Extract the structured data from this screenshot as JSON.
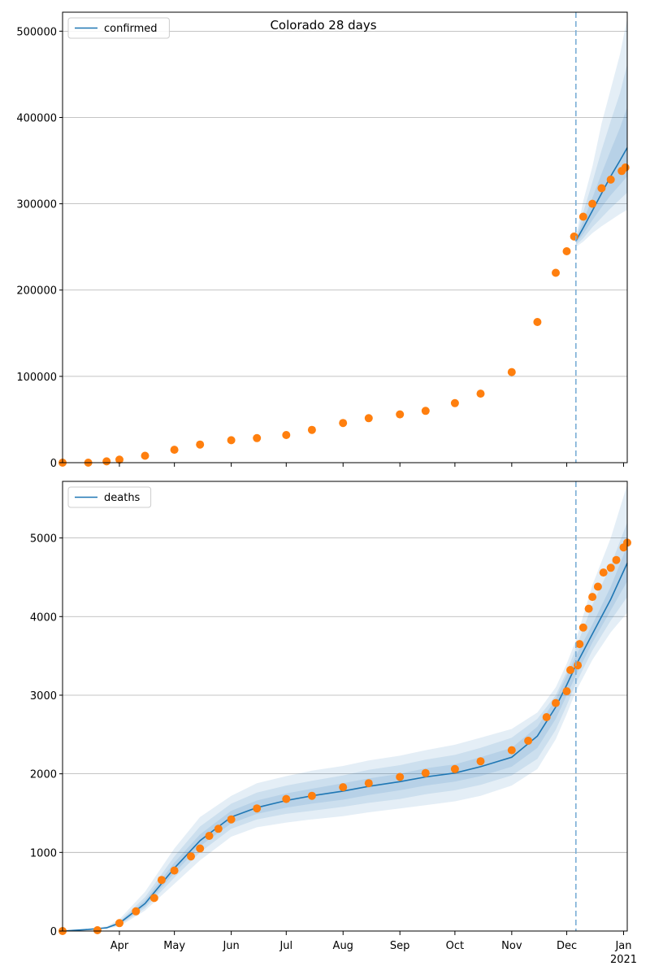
{
  "chart_data": [
    {
      "type": "line",
      "title": "Colorado 28 days",
      "xlabel": "",
      "ylabel": "",
      "ylim": [
        0,
        522000
      ],
      "yticks": [
        0,
        100000,
        200000,
        300000,
        400000,
        500000
      ],
      "ytick_labels": [
        "0",
        "100000",
        "200000",
        "300000",
        "400000",
        "500000"
      ],
      "grid": "y",
      "legend_position": "top-left",
      "series": [
        {
          "name": "confirmed",
          "kind": "model",
          "color": "#1f77b4",
          "points": [
            [
              "2020-12-06",
              257000
            ],
            [
              "2020-12-10",
              272000
            ],
            [
              "2020-12-15",
              292000
            ],
            [
              "2020-12-20",
              312000
            ],
            [
              "2020-12-25",
              332000
            ],
            [
              "2020-12-30",
              350000
            ],
            [
              "2021-01-03",
              365000
            ]
          ],
          "bands": [
            {
              "lower": [
                250000,
                256000,
                266000,
                274000,
                281000,
                288000,
                293000
              ],
              "upper": [
                262000,
                303000,
                343000,
                393000,
                433000,
                473000,
                515000
              ]
            },
            {
              "lower": [
                252000,
                260000,
                273000,
                284000,
                295000,
                305000,
                313000
              ],
              "upper": [
                260000,
                290000,
                325000,
                362000,
                396000,
                428000,
                462000
              ]
            },
            {
              "lower": [
                254000,
                265000,
                281000,
                296000,
                310000,
                322000,
                332000
              ],
              "upper": [
                259000,
                280000,
                307000,
                335000,
                362000,
                388000,
                412000
              ]
            }
          ]
        },
        {
          "name": "",
          "kind": "observed",
          "color": "#ff7f0e",
          "points": [
            [
              "2020-03-01",
              0
            ],
            [
              "2020-03-15",
              0
            ],
            [
              "2020-03-25",
              1500
            ],
            [
              "2020-04-01",
              3500
            ],
            [
              "2020-04-15",
              8000
            ],
            [
              "2020-05-01",
              15000
            ],
            [
              "2020-05-15",
              21000
            ],
            [
              "2020-06-01",
              26000
            ],
            [
              "2020-06-15",
              28500
            ],
            [
              "2020-07-01",
              32000
            ],
            [
              "2020-07-15",
              38000
            ],
            [
              "2020-08-01",
              46000
            ],
            [
              "2020-08-15",
              51500
            ],
            [
              "2020-09-01",
              56000
            ],
            [
              "2020-09-15",
              60000
            ],
            [
              "2020-10-01",
              69000
            ],
            [
              "2020-10-15",
              80000
            ],
            [
              "2020-11-01",
              105000
            ],
            [
              "2020-11-15",
              163000
            ],
            [
              "2020-11-25",
              220000
            ],
            [
              "2020-12-01",
              245000
            ],
            [
              "2020-12-05",
              262000
            ],
            [
              "2020-12-10",
              285000
            ],
            [
              "2020-12-15",
              300000
            ],
            [
              "2020-12-20",
              318000
            ],
            [
              "2020-12-25",
              328000
            ],
            [
              "2020-12-31",
              338000
            ],
            [
              "2021-01-02",
              342000
            ]
          ]
        }
      ],
      "annotations": [
        {
          "type": "vline",
          "x": "2020-12-06",
          "style": "dashed",
          "color": "#7aaed6"
        }
      ]
    },
    {
      "type": "line",
      "title": "",
      "xlabel": "",
      "ylabel": "",
      "ylim": [
        0,
        5720
      ],
      "yticks": [
        0,
        1000,
        2000,
        3000,
        4000,
        5000
      ],
      "ytick_labels": [
        "0",
        "1000",
        "2000",
        "3000",
        "4000",
        "5000"
      ],
      "grid": "y",
      "legend_position": "top-left",
      "xlim": [
        "2020-03-01",
        "2021-01-03"
      ],
      "xticks": [
        "2020-04-01",
        "2020-05-01",
        "2020-06-01",
        "2020-07-01",
        "2020-08-01",
        "2020-09-01",
        "2020-10-01",
        "2020-11-01",
        "2020-12-01",
        "2021-01-01"
      ],
      "xtick_labels": [
        "Apr",
        "May",
        "Jun",
        "Jul",
        "Aug",
        "Sep",
        "Oct",
        "Nov",
        "Dec",
        "Jan"
      ],
      "xtick_sublabel": "2021",
      "series": [
        {
          "name": "deaths",
          "kind": "model",
          "color": "#1f77b4",
          "points": [
            [
              "2020-03-01",
              0
            ],
            [
              "2020-03-15",
              20
            ],
            [
              "2020-03-25",
              40
            ],
            [
              "2020-04-01",
              100
            ],
            [
              "2020-04-15",
              350
            ],
            [
              "2020-05-01",
              800
            ],
            [
              "2020-05-15",
              1150
            ],
            [
              "2020-06-01",
              1450
            ],
            [
              "2020-06-15",
              1570
            ],
            [
              "2020-07-01",
              1660
            ],
            [
              "2020-07-15",
              1720
            ],
            [
              "2020-08-01",
              1780
            ],
            [
              "2020-08-15",
              1840
            ],
            [
              "2020-09-01",
              1900
            ],
            [
              "2020-09-15",
              1960
            ],
            [
              "2020-10-01",
              2010
            ],
            [
              "2020-10-15",
              2090
            ],
            [
              "2020-11-01",
              2210
            ],
            [
              "2020-11-15",
              2480
            ],
            [
              "2020-11-25",
              2850
            ],
            [
              "2020-12-01",
              3130
            ],
            [
              "2020-12-06",
              3380
            ],
            [
              "2020-12-15",
              3780
            ],
            [
              "2020-12-25",
              4220
            ],
            [
              "2021-01-03",
              4680
            ]
          ],
          "bands": [
            {
              "lower": [
                0,
                15,
                30,
                60,
                260,
                600,
                900,
                1200,
                1320,
                1380,
                1420,
                1460,
                1510,
                1560,
                1600,
                1650,
                1720,
                1850,
                2060,
                2440,
                2760,
                3050,
                3450,
                3800,
                4050
              ],
              "upper": [
                0,
                30,
                60,
                150,
                500,
                1050,
                1450,
                1720,
                1880,
                1970,
                2040,
                2100,
                2170,
                2230,
                2300,
                2370,
                2460,
                2570,
                2780,
                3100,
                3400,
                3700,
                4400,
                5000,
                5680
              ]
            },
            {
              "lower": [
                0,
                18,
                35,
                75,
                290,
                680,
                1000,
                1300,
                1420,
                1490,
                1530,
                1580,
                1630,
                1680,
                1740,
                1790,
                1860,
                1980,
                2190,
                2560,
                2870,
                3150,
                3570,
                3950,
                4250
              ],
              "upper": [
                0,
                25,
                50,
                125,
                430,
                950,
                1330,
                1620,
                1760,
                1850,
                1910,
                1980,
                2050,
                2110,
                2180,
                2240,
                2330,
                2460,
                2700,
                3000,
                3300,
                3600,
                4150,
                4650,
                5200
              ]
            },
            {
              "lower": [
                0,
                19,
                38,
                85,
                315,
                740,
                1080,
                1370,
                1490,
                1570,
                1620,
                1670,
                1730,
                1790,
                1850,
                1900,
                1970,
                2090,
                2330,
                2700,
                3000,
                3250,
                3670,
                4080,
                4450
              ],
              "upper": [
                0,
                22,
                45,
                115,
                390,
                870,
                1230,
                1530,
                1660,
                1750,
                1810,
                1880,
                1940,
                2000,
                2070,
                2120,
                2210,
                2330,
                2600,
                2950,
                3250,
                3500,
                3900,
                4380,
                4900
              ]
            }
          ]
        },
        {
          "name": "",
          "kind": "observed",
          "color": "#ff7f0e",
          "points": [
            [
              "2020-03-01",
              0
            ],
            [
              "2020-03-20",
              10
            ],
            [
              "2020-04-01",
              100
            ],
            [
              "2020-04-10",
              250
            ],
            [
              "2020-04-20",
              420
            ],
            [
              "2020-04-24",
              650
            ],
            [
              "2020-05-01",
              770
            ],
            [
              "2020-05-10",
              950
            ],
            [
              "2020-05-15",
              1050
            ],
            [
              "2020-05-20",
              1210
            ],
            [
              "2020-05-25",
              1300
            ],
            [
              "2020-06-01",
              1420
            ],
            [
              "2020-06-15",
              1560
            ],
            [
              "2020-07-01",
              1680
            ],
            [
              "2020-07-15",
              1720
            ],
            [
              "2020-08-01",
              1830
            ],
            [
              "2020-08-15",
              1880
            ],
            [
              "2020-09-01",
              1960
            ],
            [
              "2020-09-15",
              2010
            ],
            [
              "2020-10-01",
              2060
            ],
            [
              "2020-10-15",
              2160
            ],
            [
              "2020-11-01",
              2300
            ],
            [
              "2020-11-10",
              2420
            ],
            [
              "2020-11-20",
              2720
            ],
            [
              "2020-11-25",
              2900
            ],
            [
              "2020-12-01",
              3050
            ],
            [
              "2020-12-03",
              3320
            ],
            [
              "2020-12-07",
              3380
            ],
            [
              "2020-12-08",
              3650
            ],
            [
              "2020-12-10",
              3860
            ],
            [
              "2020-12-13",
              4100
            ],
            [
              "2020-12-15",
              4250
            ],
            [
              "2020-12-18",
              4380
            ],
            [
              "2020-12-21",
              4560
            ],
            [
              "2020-12-25",
              4620
            ],
            [
              "2020-12-28",
              4720
            ],
            [
              "2021-01-01",
              4880
            ],
            [
              "2021-01-03",
              4940
            ]
          ]
        }
      ],
      "annotations": [
        {
          "type": "vline",
          "x": "2020-12-06",
          "style": "dashed",
          "color": "#7aaed6"
        }
      ]
    }
  ]
}
